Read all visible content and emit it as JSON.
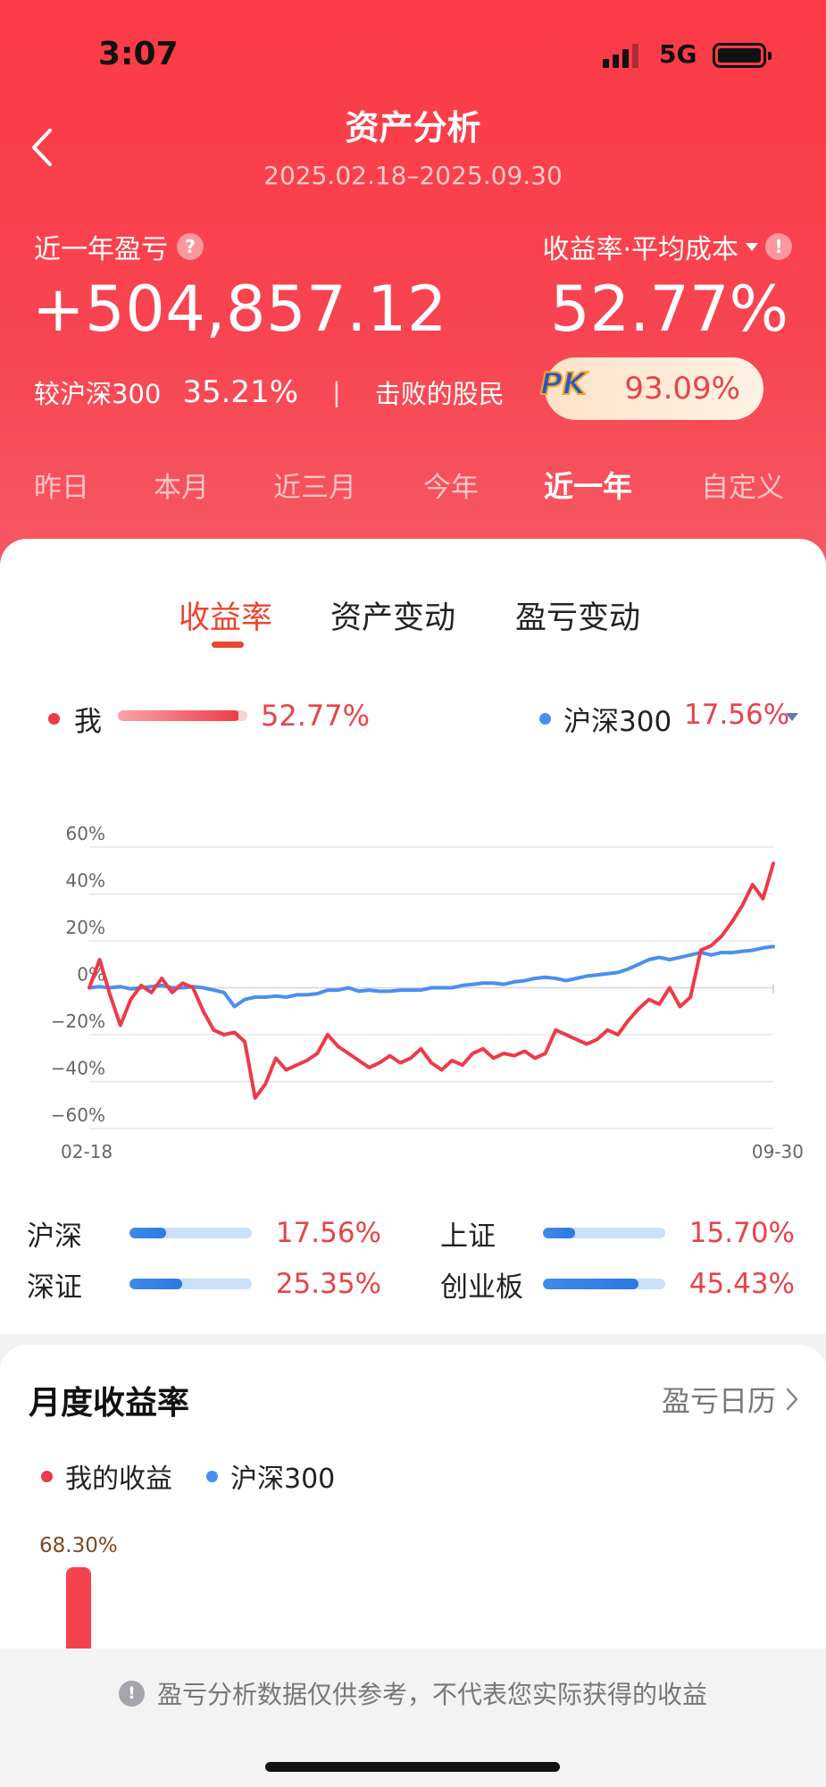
{
  "status_bar": {
    "time": "3:07",
    "network": "5G"
  },
  "nav": {
    "title": "资产分析",
    "date_range": "2025.02.18–2025.09.30"
  },
  "summary": {
    "left_label": "近一年盈亏",
    "left_value": "+504,857.12",
    "right_label": "收益率·平均成本",
    "right_value": "52.77%",
    "compare_label": "较沪深300",
    "compare_value": "35.21%",
    "separator": "|",
    "beat_label": "击败的股民",
    "pk_label": "PK",
    "beat_value": "93.09%"
  },
  "period_tabs": [
    {
      "label": "昨日",
      "active": false
    },
    {
      "label": "本月",
      "active": false
    },
    {
      "label": "近三月",
      "active": false
    },
    {
      "label": "今年",
      "active": false
    },
    {
      "label": "近一年",
      "active": true
    },
    {
      "label": "自定义",
      "active": false
    }
  ],
  "sub_tabs": [
    {
      "label": "收益率",
      "active": true
    },
    {
      "label": "资产变动",
      "active": false
    },
    {
      "label": "盈亏变动",
      "active": false
    }
  ],
  "legend": {
    "me_label": "我",
    "me_value": "52.77%",
    "index_label": "沪深300",
    "index_value": "17.56%"
  },
  "colors": {
    "me": "#ee3a48",
    "index": "#4a8ff0",
    "accent": "#e8462f"
  },
  "chart_data": {
    "type": "line",
    "ylim": [
      -60,
      60
    ],
    "y_ticks": [
      "60%",
      "40%",
      "20%",
      "0%",
      "−20%",
      "−40%",
      "−60%"
    ],
    "x_start_label": "02-18",
    "x_end_label": "09-30",
    "series": [
      {
        "name": "我",
        "color": "#ee3a48",
        "values": [
          0,
          12,
          -3,
          -16,
          -5,
          1,
          -2,
          4,
          -2,
          2,
          0,
          -10,
          -18,
          -20,
          -19,
          -23,
          -47,
          -41,
          -30,
          -35,
          -33,
          -31,
          -28,
          -20,
          -25,
          -28,
          -31,
          -34,
          -32,
          -29,
          -32,
          -30,
          -26,
          -32,
          -35,
          -31,
          -33,
          -28,
          -26,
          -30,
          -28,
          -29,
          -27,
          -30,
          -28,
          -18,
          -20,
          -22,
          -24,
          -22,
          -18,
          -20,
          -14,
          -9,
          -5,
          -7,
          0,
          -8,
          -4,
          16,
          18,
          22,
          28,
          35,
          44,
          38,
          53
        ]
      },
      {
        "name": "沪深300",
        "color": "#4a8ff0",
        "values": [
          0,
          0.5,
          0,
          0.5,
          -0.5,
          0,
          0.5,
          1,
          0,
          0,
          0.5,
          0,
          -1,
          -2,
          -8,
          -5,
          -4,
          -4,
          -3.5,
          -4,
          -3,
          -3,
          -2.5,
          -1,
          -1,
          0,
          -1.5,
          -1,
          -1.5,
          -1.5,
          -1,
          -1,
          -1,
          0,
          0,
          0,
          1,
          1.5,
          2,
          2,
          1.5,
          2.5,
          3,
          4,
          4.5,
          4,
          3,
          4,
          5,
          5.5,
          6,
          6.5,
          8,
          10,
          12,
          13,
          12,
          13,
          14,
          15,
          14,
          15,
          15,
          15.5,
          16,
          17,
          17.56
        ]
      }
    ]
  },
  "indices": [
    {
      "name": "沪深",
      "value": "17.56%",
      "fill": 0.3
    },
    {
      "name": "上证",
      "value": "15.70%",
      "fill": 0.26
    },
    {
      "name": "深证",
      "value": "25.35%",
      "fill": 0.43
    },
    {
      "name": "创业板",
      "value": "45.43%",
      "fill": 0.78
    }
  ],
  "monthly": {
    "title": "月度收益率",
    "link": "盈亏日历",
    "legend_me": "我的收益",
    "legend_index": "沪深300",
    "first_bar_label": "68.30%",
    "first_bar_value": 68.3
  },
  "footer": {
    "note": "盈亏分析数据仅供参考，不代表您实际获得的收益"
  }
}
